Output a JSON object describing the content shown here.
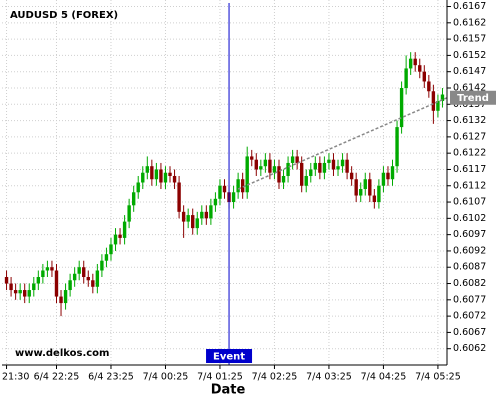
{
  "chart_data": {
    "type": "candlestick",
    "title": "AUDUSD 5 (FOREX)",
    "watermark": "www.delkos.com",
    "x_label": "Date",
    "up_color": "#00aa00",
    "down_color": "#8b0000",
    "grid": true,
    "ylim": [
      0.6057,
      0.6169
    ],
    "yticks": [
      0.6062,
      0.6067,
      0.6072,
      0.6077,
      0.6082,
      0.6087,
      0.6092,
      0.6097,
      0.6102,
      0.6107,
      0.6112,
      0.6117,
      0.6122,
      0.6127,
      0.6132,
      0.6137,
      0.6142,
      0.6147,
      0.6152,
      0.6157,
      0.6162,
      0.6167
    ],
    "xlim": [
      -1,
      97
    ],
    "xticks": [
      {
        "value": 0,
        "label": "6/4 21:30"
      },
      {
        "value": 11,
        "label": "6/4 22:25"
      },
      {
        "value": 23,
        "label": "6/4 23:25"
      },
      {
        "value": 35,
        "label": "7/4 00:25"
      },
      {
        "value": 47,
        "label": "7/4 01:25"
      },
      {
        "value": 59,
        "label": "7/4 02:25"
      },
      {
        "value": 71,
        "label": "7/4 03:25"
      },
      {
        "value": 83,
        "label": "7/4 04:25"
      },
      {
        "value": 95,
        "label": "7/4 05:25"
      }
    ],
    "open": [
      0.6084,
      0.6082,
      0.608,
      0.6079,
      0.608,
      0.6078,
      0.608,
      0.6082,
      0.6084,
      0.6086,
      0.6087,
      0.6086,
      0.6078,
      0.6076,
      0.608,
      0.6083,
      0.6085,
      0.6087,
      0.6084,
      0.6083,
      0.6081,
      0.6086,
      0.6089,
      0.6091,
      0.6094,
      0.6097,
      0.6096,
      0.6101,
      0.6106,
      0.611,
      0.6113,
      0.6116,
      0.6118,
      0.6114,
      0.6117,
      0.6113,
      0.6116,
      0.6115,
      0.6113,
      0.6104,
      0.6101,
      0.6103,
      0.6099,
      0.6102,
      0.6104,
      0.6102,
      0.6106,
      0.6108,
      0.6112,
      0.611,
      0.6107,
      0.611,
      0.6114,
      0.611,
      0.6121,
      0.612,
      0.6117,
      0.6118,
      0.612,
      0.6116,
      0.6118,
      0.6113,
      0.6115,
      0.6119,
      0.6121,
      0.6119,
      0.6112,
      0.6115,
      0.6117,
      0.6119,
      0.6116,
      0.6119,
      0.612,
      0.6117,
      0.6118,
      0.612,
      0.6116,
      0.6114,
      0.6109,
      0.6111,
      0.6114,
      0.6109,
      0.6107,
      0.6112,
      0.6116,
      0.6114,
      0.6118,
      0.613,
      0.6142,
      0.6148,
      0.6151,
      0.6149,
      0.6147,
      0.6144,
      0.6141,
      0.6135,
      0.6138
    ],
    "high": [
      0.6086,
      0.6084,
      0.6082,
      0.6082,
      0.6082,
      0.6082,
      0.6084,
      0.6086,
      0.6088,
      0.6089,
      0.6089,
      0.6088,
      0.608,
      0.6082,
      0.6085,
      0.6087,
      0.6089,
      0.6089,
      0.6086,
      0.6085,
      0.6088,
      0.6091,
      0.6093,
      0.6096,
      0.6099,
      0.6099,
      0.6103,
      0.6108,
      0.6112,
      0.6115,
      0.6118,
      0.6121,
      0.612,
      0.6119,
      0.6119,
      0.6118,
      0.6118,
      0.6117,
      0.6115,
      0.6106,
      0.6105,
      0.6105,
      0.6104,
      0.6106,
      0.6106,
      0.6108,
      0.611,
      0.6114,
      0.6114,
      0.6112,
      0.6112,
      0.6116,
      0.6116,
      0.6124,
      0.6123,
      0.6122,
      0.612,
      0.6122,
      0.6122,
      0.612,
      0.612,
      0.6117,
      0.6121,
      0.6123,
      0.6123,
      0.6121,
      0.6117,
      0.6119,
      0.6121,
      0.6121,
      0.6121,
      0.6122,
      0.6122,
      0.612,
      0.6122,
      0.6122,
      0.6118,
      0.6116,
      0.6113,
      0.6116,
      0.6116,
      0.6111,
      0.6114,
      0.6118,
      0.6118,
      0.612,
      0.6132,
      0.6144,
      0.6152,
      0.6153,
      0.6153,
      0.6151,
      0.6149,
      0.6146,
      0.6143,
      0.614,
      0.6142
    ],
    "low": [
      0.608,
      0.6078,
      0.6077,
      0.6077,
      0.6076,
      0.6076,
      0.6078,
      0.608,
      0.6082,
      0.6084,
      0.6084,
      0.6076,
      0.6072,
      0.6074,
      0.6078,
      0.6081,
      0.6083,
      0.6082,
      0.6081,
      0.6079,
      0.6079,
      0.6084,
      0.6087,
      0.6089,
      0.6092,
      0.6094,
      0.6094,
      0.6099,
      0.6104,
      0.6108,
      0.6111,
      0.6114,
      0.6112,
      0.6112,
      0.6111,
      0.6111,
      0.6113,
      0.6111,
      0.6102,
      0.6096,
      0.6099,
      0.6097,
      0.6097,
      0.61,
      0.61,
      0.61,
      0.6104,
      0.6106,
      0.6108,
      0.6105,
      0.6105,
      0.6108,
      0.6108,
      0.6108,
      0.6118,
      0.6115,
      0.6115,
      0.6116,
      0.6114,
      0.6114,
      0.6111,
      0.6111,
      0.6113,
      0.6117,
      0.6117,
      0.611,
      0.611,
      0.6113,
      0.6115,
      0.6114,
      0.6114,
      0.6117,
      0.6115,
      0.6115,
      0.6116,
      0.6114,
      0.6112,
      0.6107,
      0.6107,
      0.6109,
      0.6107,
      0.6105,
      0.6105,
      0.611,
      0.6112,
      0.6112,
      0.6116,
      0.6128,
      0.614,
      0.6146,
      0.6147,
      0.6145,
      0.6142,
      0.6139,
      0.6131,
      0.6133,
      0.6136
    ],
    "close": [
      0.6082,
      0.608,
      0.6079,
      0.608,
      0.6078,
      0.608,
      0.6082,
      0.6084,
      0.6086,
      0.6087,
      0.6086,
      0.6078,
      0.6076,
      0.608,
      0.6083,
      0.6085,
      0.6087,
      0.6084,
      0.6083,
      0.6081,
      0.6086,
      0.6089,
      0.6091,
      0.6094,
      0.6097,
      0.6096,
      0.6101,
      0.6106,
      0.611,
      0.6113,
      0.6116,
      0.6118,
      0.6114,
      0.6117,
      0.6113,
      0.6116,
      0.6115,
      0.6113,
      0.6104,
      0.6101,
      0.6103,
      0.6099,
      0.6102,
      0.6104,
      0.6102,
      0.6106,
      0.6108,
      0.6112,
      0.611,
      0.6107,
      0.611,
      0.6114,
      0.611,
      0.6121,
      0.612,
      0.6117,
      0.6118,
      0.612,
      0.6116,
      0.6118,
      0.6113,
      0.6115,
      0.6119,
      0.6121,
      0.6119,
      0.6112,
      0.6115,
      0.6117,
      0.6119,
      0.6116,
      0.6119,
      0.612,
      0.6117,
      0.6118,
      0.612,
      0.6116,
      0.6114,
      0.6109,
      0.6111,
      0.6114,
      0.6109,
      0.6107,
      0.6112,
      0.6116,
      0.6114,
      0.6118,
      0.613,
      0.6142,
      0.6148,
      0.6151,
      0.6149,
      0.6147,
      0.6144,
      0.6141,
      0.6135,
      0.6138,
      0.614
    ],
    "event": {
      "label": "Event",
      "index": 49,
      "color": "#0000cc"
    },
    "trend": {
      "label": "Trend",
      "start_index": 51,
      "start": 0.6111,
      "end_index": 97,
      "end": 0.6139,
      "color": "#888888"
    }
  }
}
